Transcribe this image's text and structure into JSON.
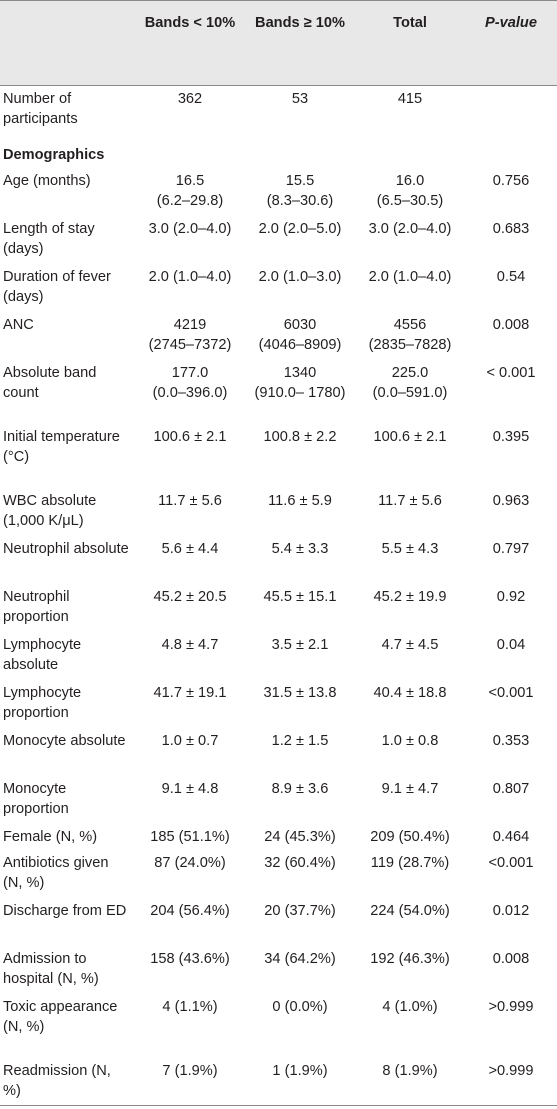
{
  "header": {
    "col0": "",
    "col1": "Bands < 10%",
    "col2": "Bands ≥ 10%",
    "col3": "Total",
    "col4": "P-value"
  },
  "rows": [
    {
      "label": "Number of participants",
      "v1": "362",
      "v2": "53",
      "v3": "415",
      "p": ""
    },
    {
      "section": "Demographics"
    },
    {
      "label": "Age (months)",
      "v1": "16.5",
      "v1b": "(6.2–29.8)",
      "v2": "15.5",
      "v2b": "(8.3–30.6)",
      "v3": "16.0",
      "v3b": "(6.5–30.5)",
      "p": "0.756"
    },
    {
      "label": "Length of stay (days)",
      "v1": "3.0 (2.0–4.0)",
      "v2": "2.0 (2.0–5.0)",
      "v3": "3.0 (2.0–4.0)",
      "p": "0.683"
    },
    {
      "label": "Duration of fever (days)",
      "v1": "2.0 (1.0–4.0)",
      "v2": "2.0 (1.0–3.0)",
      "v3": "2.0 (1.0–4.0)",
      "p": "0.54"
    },
    {
      "label": "ANC",
      "v1": "4219",
      "v1b": "(2745–7372)",
      "v2": "6030",
      "v2b": "(4046–8909)",
      "v3": "4556",
      "v3b": "(2835–7828)",
      "p": "0.008"
    },
    {
      "label": "Absolute band count",
      "v1": "177.0",
      "v1b": "(0.0–396.0)",
      "v2": "1340",
      "v2b": "(910.0– 1780)",
      "v3": "225.0",
      "v3b": "(0.0–591.0)",
      "p": "< 0.001"
    },
    {
      "label": "Initial temperature (°C)",
      "v1": "100.6 ± 2.1",
      "v2": "100.8 ± 2.2",
      "v3": "100.6 ± 2.1",
      "p": "0.395"
    },
    {
      "label": "WBC absolute (1,000 K/μL)",
      "v1": "11.7 ± 5.6",
      "v2": "11.6 ± 5.9",
      "v3": "11.7 ± 5.6",
      "p": "0.963"
    },
    {
      "label": "Neutrophil absolute",
      "v1": "5.6 ± 4.4",
      "v2": "5.4 ± 3.3",
      "v3": "5.5 ± 4.3",
      "p": "0.797"
    },
    {
      "label": "Neutrophil proportion",
      "v1": "45.2 ± 20.5",
      "v2": "45.5 ± 15.1",
      "v3": "45.2 ± 19.9",
      "p": "0.92"
    },
    {
      "label": "Lymphocyte absolute",
      "v1": "4.8 ± 4.7",
      "v2": "3.5 ± 2.1",
      "v3": "4.7 ± 4.5",
      "p": "0.04"
    },
    {
      "label": "Lymphocyte proportion",
      "v1": "41.7 ± 19.1",
      "v2": "31.5 ± 13.8",
      "v3": "40.4 ± 18.8",
      "p": "<0.001"
    },
    {
      "label": "Monocyte absolute",
      "v1": "1.0 ± 0.7",
      "v2": "1.2 ± 1.5",
      "v3": "1.0 ± 0.8",
      "p": "0.353"
    },
    {
      "label": "Monocyte proportion",
      "v1": "9.1 ± 4.8",
      "v2": "8.9 ± 3.6",
      "v3": "9.1 ± 4.7",
      "p": "0.807"
    },
    {
      "label": "Female (N, %)",
      "v1": "185 (51.1%)",
      "v2": "24 (45.3%)",
      "v3": "209 (50.4%)",
      "p": "0.464"
    },
    {
      "label": "Antibiotics given (N, %)",
      "v1": "87 (24.0%)",
      "v2": "32 (60.4%)",
      "v3": "119 (28.7%)",
      "p": "<0.001"
    },
    {
      "label": "Discharge from ED",
      "v1": "204 (56.4%)",
      "v2": "20 (37.7%)",
      "v3": "224 (54.0%)",
      "p": "0.012"
    },
    {
      "label": "Admission to hospital (N, %)",
      "v1": "158 (43.6%)",
      "v2": "34 (64.2%)",
      "v3": "192 (46.3%)",
      "p": "0.008"
    },
    {
      "label": "Toxic appearance (N, %)",
      "v1": "4 (1.1%)",
      "v2": "0 (0.0%)",
      "v3": "4 (1.0%)",
      "p": ">0.999"
    },
    {
      "label": "Readmission (N, %)",
      "v1": "7 (1.9%)",
      "v2": "1 (1.9%)",
      "v3": "8 (1.9%)",
      "p": ">0.999"
    }
  ]
}
